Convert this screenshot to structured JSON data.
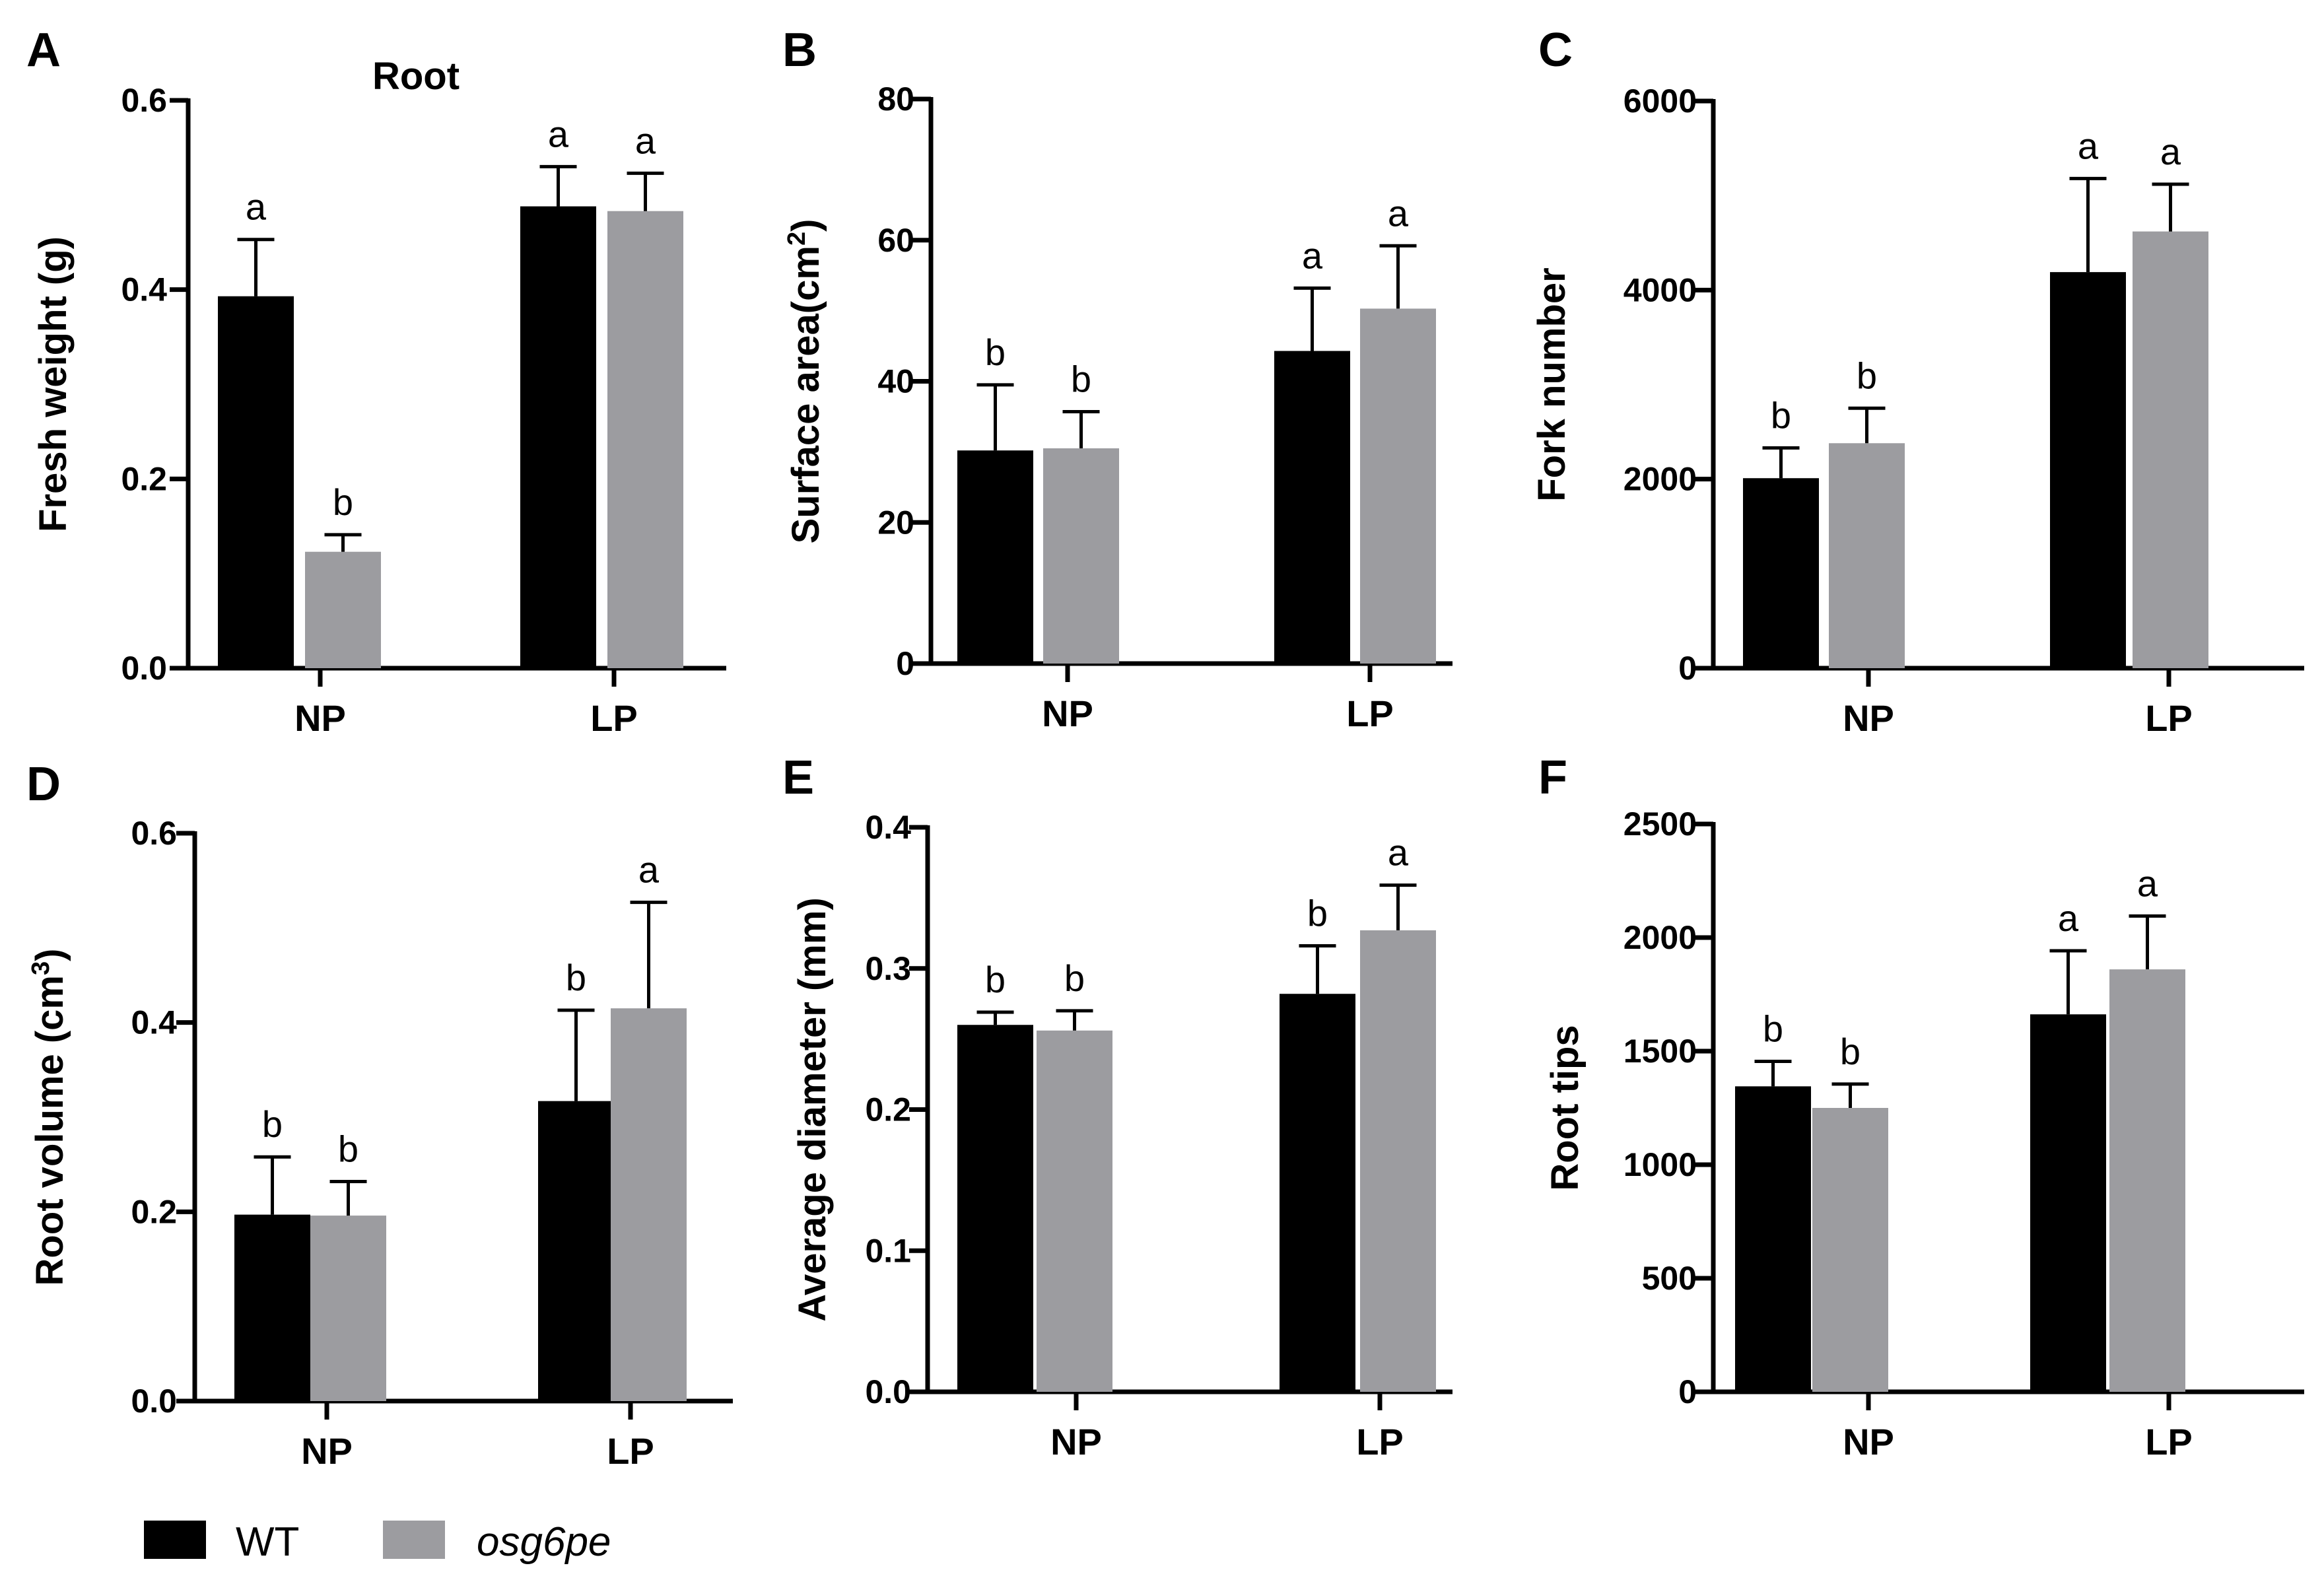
{
  "figure": {
    "legend": {
      "entries": [
        {
          "label": "WT",
          "color": "#000000",
          "italic": false
        },
        {
          "label": "osg6pe",
          "color": "#9c9ca0",
          "italic": true
        }
      ]
    }
  },
  "chart_data": [
    {
      "panel": "A",
      "type": "bar",
      "title": "Root",
      "ylabel": "Fresh weight (g)",
      "ylim": [
        0,
        0.6
      ],
      "yticks": [
        0.0,
        0.2,
        0.4,
        0.6
      ],
      "ytick_labels": [
        "0.0",
        "0.2",
        "0.4",
        "0.6"
      ],
      "categories": [
        "NP",
        "LP"
      ],
      "series": [
        {
          "name": "WT",
          "values": [
            0.393,
            0.488
          ],
          "errors": [
            0.06,
            0.042
          ],
          "letters": [
            "a",
            "a"
          ]
        },
        {
          "name": "osg6pe",
          "values": [
            0.123,
            0.483
          ],
          "errors": [
            0.018,
            0.04
          ],
          "letters": [
            "b",
            "a"
          ]
        }
      ]
    },
    {
      "panel": "B",
      "type": "bar",
      "title": "",
      "ylabel": "Surface area(cm",
      "ylabel_sup": "2",
      "ylabel_suffix": ")",
      "ylim": [
        0,
        80
      ],
      "yticks": [
        0,
        20,
        40,
        60,
        80
      ],
      "ytick_labels": [
        "0",
        "20",
        "40",
        "60",
        "80"
      ],
      "categories": [
        "NP",
        "LP"
      ],
      "series": [
        {
          "name": "WT",
          "values": [
            30.2,
            44.3
          ],
          "errors": [
            9.3,
            8.9
          ],
          "letters": [
            "b",
            "a"
          ]
        },
        {
          "name": "osg6pe",
          "values": [
            30.5,
            50.3
          ],
          "errors": [
            5.2,
            8.9
          ],
          "letters": [
            "b",
            "a"
          ]
        }
      ]
    },
    {
      "panel": "C",
      "type": "bar",
      "title": "",
      "ylabel": "Fork number",
      "ylim": [
        0,
        6000
      ],
      "yticks": [
        0,
        2000,
        4000,
        6000
      ],
      "ytick_labels": [
        "0",
        "2000",
        "4000",
        "6000"
      ],
      "categories": [
        "NP",
        "LP"
      ],
      "series": [
        {
          "name": "WT",
          "values": [
            2010,
            4190
          ],
          "errors": [
            320,
            990
          ],
          "letters": [
            "b",
            "a"
          ]
        },
        {
          "name": "osg6pe",
          "values": [
            2380,
            4620
          ],
          "errors": [
            370,
            500
          ],
          "letters": [
            "b",
            "a"
          ]
        }
      ]
    },
    {
      "panel": "D",
      "type": "bar",
      "title": "",
      "ylabel": "Root volume (cm",
      "ylabel_sup": "3",
      "ylabel_suffix": ")",
      "ylim": [
        0,
        0.6
      ],
      "yticks": [
        0.0,
        0.2,
        0.4,
        0.6
      ],
      "ytick_labels": [
        "0.0",
        "0.2",
        "0.4",
        "0.6"
      ],
      "categories": [
        "NP",
        "LP"
      ],
      "series": [
        {
          "name": "WT",
          "values": [
            0.197,
            0.317
          ],
          "errors": [
            0.061,
            0.096
          ],
          "letters": [
            "b",
            "b"
          ]
        },
        {
          "name": "osg6pe",
          "values": [
            0.196,
            0.415
          ],
          "errors": [
            0.036,
            0.112
          ],
          "letters": [
            "b",
            "a"
          ]
        }
      ]
    },
    {
      "panel": "E",
      "type": "bar",
      "title": "",
      "ylabel": "Average diameter (mm)",
      "ylim": [
        0,
        0.4
      ],
      "yticks": [
        0.0,
        0.1,
        0.2,
        0.3,
        0.4
      ],
      "ytick_labels": [
        "0.0",
        "0.1",
        "0.2",
        "0.3",
        "0.4"
      ],
      "categories": [
        "NP",
        "LP"
      ],
      "series": [
        {
          "name": "WT",
          "values": [
            0.26,
            0.282
          ],
          "errors": [
            0.009,
            0.034
          ],
          "letters": [
            "b",
            "b"
          ]
        },
        {
          "name": "osg6pe",
          "values": [
            0.256,
            0.327
          ],
          "errors": [
            0.014,
            0.032
          ],
          "letters": [
            "b",
            "a"
          ]
        }
      ]
    },
    {
      "panel": "F",
      "type": "bar",
      "title": "",
      "ylabel": "Root tips",
      "ylim": [
        0,
        2500
      ],
      "yticks": [
        0,
        500,
        1000,
        1500,
        2000,
        2500
      ],
      "ytick_labels": [
        "0",
        "500",
        "1000",
        "1500",
        "2000",
        "2500"
      ],
      "categories": [
        "NP",
        "LP"
      ],
      "series": [
        {
          "name": "WT",
          "values": [
            1345,
            1662
          ],
          "errors": [
            110,
            280
          ],
          "letters": [
            "b",
            "a"
          ]
        },
        {
          "name": "osg6pe",
          "values": [
            1250,
            1860
          ],
          "errors": [
            105,
            235
          ],
          "letters": [
            "b",
            "a"
          ]
        }
      ]
    }
  ]
}
